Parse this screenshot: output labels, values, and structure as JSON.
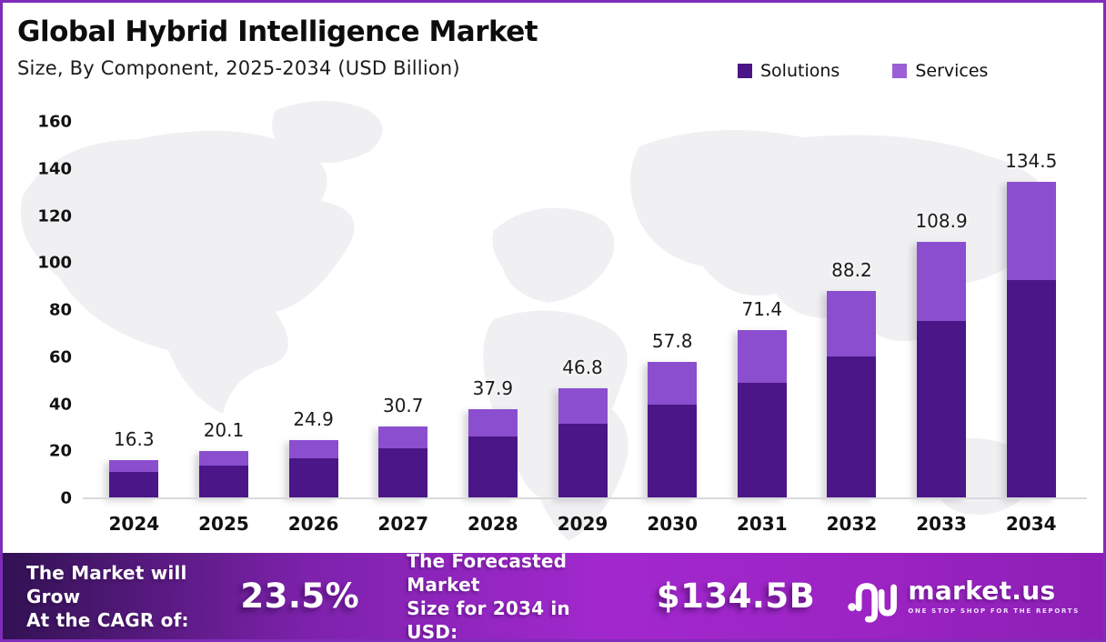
{
  "header": {
    "title": "Global Hybrid Intelligence Market",
    "subtitle": "Size, By Component, 2025-2034 (USD Billion)"
  },
  "legend": [
    {
      "label": "Solutions",
      "color": "#4c1587"
    },
    {
      "label": "Services",
      "color": "#9b5fd6"
    }
  ],
  "chart_data": {
    "type": "bar",
    "stacked": true,
    "title": "Global Hybrid Intelligence Market Size, By Component, 2025-2034 (USD Billion)",
    "categories": [
      "2024",
      "2025",
      "2026",
      "2027",
      "2028",
      "2029",
      "2030",
      "2031",
      "2032",
      "2033",
      "2034"
    ],
    "series": [
      {
        "name": "Solutions",
        "color": "#4a1688",
        "values": [
          11.3,
          13.9,
          17.2,
          21.2,
          26.3,
          31.9,
          39.8,
          49.1,
          60.5,
          75.2,
          92.9
        ]
      },
      {
        "name": "Services",
        "color": "#8b4ecf",
        "values": [
          5.0,
          6.2,
          7.7,
          9.5,
          11.6,
          14.9,
          18.0,
          22.3,
          27.7,
          33.7,
          41.6
        ]
      }
    ],
    "totals": [
      "16.3",
      "20.1",
      "24.9",
      "30.7",
      "37.9",
      "46.8",
      "57.8",
      "71.4",
      "88.2",
      "108.9",
      "134.5"
    ],
    "xlabel": "",
    "ylabel": "",
    "ylim": [
      0,
      160
    ],
    "yticks": [
      0,
      20,
      40,
      60,
      80,
      100,
      120,
      140,
      160
    ],
    "grid": false,
    "legend_position": "top-right",
    "background": "faint world map"
  },
  "banner": {
    "cagr_label_line1": "The Market will Grow",
    "cagr_label_line2": "At the CAGR of:",
    "cagr_value": "23.5%",
    "forecast_label_line1": "The Forecasted Market",
    "forecast_label_line2": "Size for 2034 in USD:",
    "forecast_value": "$134.5B",
    "logo_name": "market.us",
    "logo_tagline": "ONE STOP SHOP FOR THE REPORTS"
  },
  "colors": {
    "border": "#7e2db8",
    "solutions": "#4a1688",
    "services": "#8b4ecf",
    "banner_gradient": [
      "#321253",
      "#a228ce",
      "#8d1fb5"
    ],
    "axis_line": "#d9d9dd",
    "map_fill": "#f0f0f3"
  }
}
